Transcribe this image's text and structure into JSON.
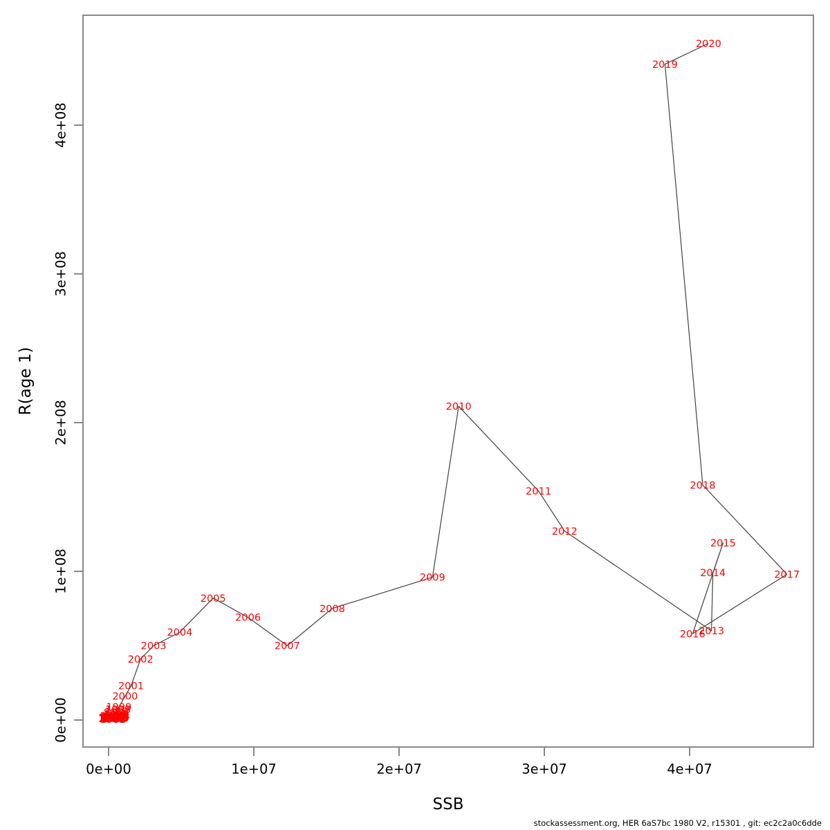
{
  "chart_data": {
    "type": "scatter",
    "title": "",
    "xlabel": "SSB",
    "ylabel": "R(age 1)",
    "grid": false,
    "legend": null,
    "xlim": [
      -1760000,
      48520000
    ],
    "ylim": [
      -18140000,
      473950000
    ],
    "x_ticks": {
      "values": [
        0,
        10000000,
        20000000,
        30000000,
        40000000
      ],
      "labels": [
        "0e+00",
        "1e+07",
        "2e+07",
        "3e+07",
        "4e+07"
      ]
    },
    "y_ticks": {
      "values": [
        0,
        100000000,
        200000000,
        300000000,
        400000000
      ],
      "labels": [
        "0e+00",
        "1e+08",
        "2e+08",
        "3e+08",
        "4e+08"
      ]
    },
    "label_color": "#ff0000",
    "line_color": "#404040",
    "frame_color": "#888888",
    "points": [
      {
        "year": "1980",
        "ssb": 250000,
        "r": 800000
      },
      {
        "year": "1981",
        "ssb": 180000,
        "r": 1500000
      },
      {
        "year": "1982",
        "ssb": 300000,
        "r": 600000
      },
      {
        "year": "1983",
        "ssb": 420000,
        "r": 2200000
      },
      {
        "year": "1984",
        "ssb": 350000,
        "r": 1000000
      },
      {
        "year": "1985",
        "ssb": 200000,
        "r": 1800000
      },
      {
        "year": "1986",
        "ssb": 150000,
        "r": 900000
      },
      {
        "year": "1987",
        "ssb": 380000,
        "r": 2500000
      },
      {
        "year": "1988",
        "ssb": 500000,
        "r": 1300000
      },
      {
        "year": "1989",
        "ssb": 560000,
        "r": 3200000
      },
      {
        "year": "1990",
        "ssb": 460000,
        "r": 2000000
      },
      {
        "year": "1991",
        "ssb": 330000,
        "r": 1100000
      },
      {
        "year": "1992",
        "ssb": 280000,
        "r": 2800000
      },
      {
        "year": "1993",
        "ssb": 520000,
        "r": 1700000
      },
      {
        "year": "1994",
        "ssb": 610000,
        "r": 2600000
      },
      {
        "year": "1995",
        "ssb": 540000,
        "r": 3800000
      },
      {
        "year": "1996",
        "ssb": 480000,
        "r": 4800000
      },
      {
        "year": "1997",
        "ssb": 600000,
        "r": 5600000
      },
      {
        "year": "1998",
        "ssb": 650000,
        "r": 7200000
      },
      {
        "year": "1999",
        "ssb": 710000,
        "r": 8800000
      },
      {
        "year": "2000",
        "ssb": 1140000,
        "r": 16000000
      },
      {
        "year": "2001",
        "ssb": 1550000,
        "r": 23000000
      },
      {
        "year": "2002",
        "ssb": 2200000,
        "r": 41000000
      },
      {
        "year": "2003",
        "ssb": 3100000,
        "r": 50000000
      },
      {
        "year": "2004",
        "ssb": 4900000,
        "r": 59000000
      },
      {
        "year": "2005",
        "ssb": 7200000,
        "r": 82000000
      },
      {
        "year": "2006",
        "ssb": 9600000,
        "r": 69000000
      },
      {
        "year": "2007",
        "ssb": 12300000,
        "r": 50000000
      },
      {
        "year": "2008",
        "ssb": 15400000,
        "r": 75000000
      },
      {
        "year": "2009",
        "ssb": 22300000,
        "r": 96000000
      },
      {
        "year": "2010",
        "ssb": 24100000,
        "r": 211000000
      },
      {
        "year": "2011",
        "ssb": 29600000,
        "r": 154000000
      },
      {
        "year": "2012",
        "ssb": 31400000,
        "r": 127000000
      },
      {
        "year": "2013",
        "ssb": 41500000,
        "r": 60000000
      },
      {
        "year": "2014",
        "ssb": 41600000,
        "r": 99000000
      },
      {
        "year": "2015",
        "ssb": 42300000,
        "r": 119000000
      },
      {
        "year": "2016",
        "ssb": 40200000,
        "r": 58000000
      },
      {
        "year": "2017",
        "ssb": 46700000,
        "r": 98000000
      },
      {
        "year": "2018",
        "ssb": 40900000,
        "r": 158000000
      },
      {
        "year": "2019",
        "ssb": 38300000,
        "r": 441000000
      },
      {
        "year": "2020",
        "ssb": 41300000,
        "r": 455000000
      }
    ]
  },
  "footer": {
    "text": "stockassessment.org, HER 6aS7bc 1980 V2, r15301 , git: ec2c2a0c6dde"
  }
}
